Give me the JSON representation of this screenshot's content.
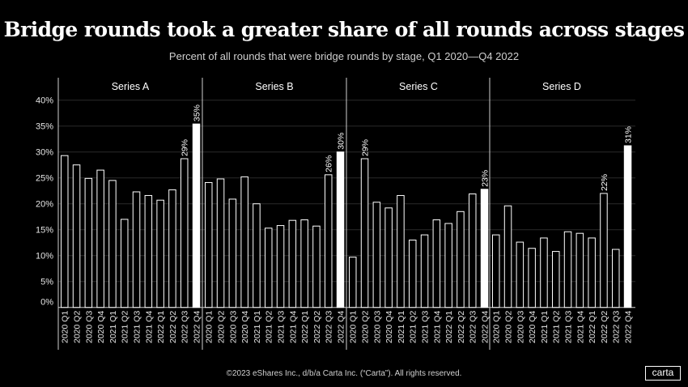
{
  "title": "Bridge rounds took a greater share of all rounds across stages",
  "subtitle": "Percent of all rounds that were bridge rounds by stage, Q1 2020—Q4 2022",
  "footer": "©2023 eShares Inc., d/b/a Carta Inc. (“Carta”). All rights reserved.",
  "logo": "carta",
  "colors": {
    "background": "#000000",
    "bar_outline": "#ffffff",
    "highlight_bar": "#ffffff",
    "grid": "#2a2a2a",
    "text": "#ffffff"
  },
  "chart_data": {
    "type": "bar",
    "title": "Bridge rounds took a greater share of all rounds across stages",
    "subtitle": "Percent of all rounds that were bridge rounds by stage, Q1 2020—Q4 2022",
    "xlabel": "",
    "ylabel": "",
    "ylim": [
      0,
      40
    ],
    "yticks": [
      0,
      5,
      10,
      15,
      20,
      25,
      30,
      35,
      40
    ],
    "ytick_labels": [
      "0%",
      "5%",
      "10%",
      "15%",
      "20%",
      "25%",
      "30%",
      "35%",
      "40%"
    ],
    "grid": true,
    "legend": "none",
    "categories": [
      "2020 Q1",
      "2020 Q2",
      "2020 Q3",
      "2020 Q4",
      "2021 Q1",
      "2021 Q2",
      "2021 Q3",
      "2021 Q4",
      "2022 Q1",
      "2022 Q2",
      "2022 Q3",
      "2022 Q4"
    ],
    "series": [
      {
        "name": "Series A",
        "values": [
          29.3,
          27.5,
          24.9,
          26.5,
          24.5,
          17.0,
          22.3,
          21.6,
          20.7,
          22.7,
          28.7,
          35.4
        ],
        "data_labels": {
          "10": "29%",
          "11": "35%"
        }
      },
      {
        "name": "Series B",
        "values": [
          24.1,
          24.8,
          20.9,
          25.2,
          20.0,
          15.3,
          15.8,
          16.8,
          16.9,
          15.7,
          25.6,
          30.0
        ],
        "data_labels": {
          "10": "26%",
          "11": "30%"
        }
      },
      {
        "name": "Series C",
        "values": [
          9.7,
          28.7,
          20.3,
          19.2,
          21.6,
          13.0,
          14.0,
          16.9,
          16.2,
          18.5,
          21.9,
          22.8
        ],
        "data_labels": {
          "1": "29%",
          "11": "23%"
        }
      },
      {
        "name": "Series D",
        "values": [
          14.0,
          19.6,
          12.6,
          11.4,
          13.4,
          10.8,
          14.6,
          14.3,
          13.4,
          22.0,
          11.2,
          31.2
        ],
        "data_labels": {
          "9": "22%",
          "11": "31%"
        }
      }
    ],
    "highlight_category": "2022 Q4"
  }
}
